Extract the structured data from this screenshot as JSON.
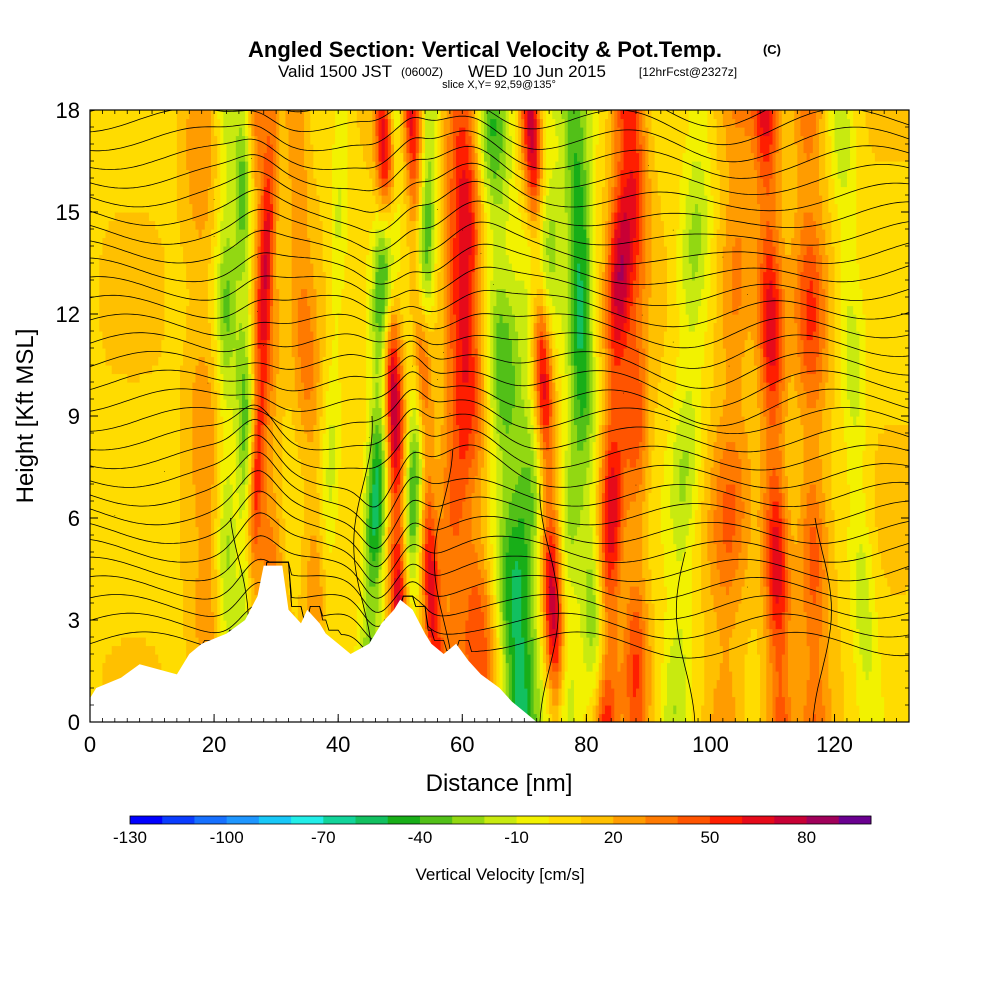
{
  "title": {
    "main": "Angled Section: Vertical Velocity & Pot.Temp.",
    "main_unit": "(C)",
    "valid_prefix": "Valid 1500 JST",
    "valid_z": "(0600Z)",
    "valid_date": "WED 10 Jun 2015",
    "valid_fcst": "[12hrFcst@2327z]",
    "slice": "slice X,Y= 92,59@135°"
  },
  "chart_data": {
    "type": "heatmap",
    "xlabel": "Distance [nm]",
    "ylabel": "Height [Kft MSL]",
    "xlim": [
      0,
      132
    ],
    "ylim": [
      0,
      18
    ],
    "x_ticks": [
      0,
      20,
      40,
      60,
      80,
      100,
      120
    ],
    "y_ticks": [
      0,
      3,
      6,
      9,
      12,
      15,
      18
    ],
    "colorbar": {
      "title": "Vertical Velocity [cm/s]",
      "levels": [
        -130,
        -120,
        -110,
        -100,
        -90,
        -80,
        -70,
        -60,
        -50,
        -40,
        -30,
        -20,
        -10,
        0,
        10,
        20,
        30,
        40,
        50,
        60,
        70,
        80,
        90,
        100
      ],
      "colors": [
        "#0000ff",
        "#0a3cff",
        "#1670ff",
        "#1e96ff",
        "#18c8f8",
        "#22eee8",
        "#12d49a",
        "#12c060",
        "#18ae18",
        "#52c018",
        "#92d812",
        "#c8ea10",
        "#f2f200",
        "#ffdc00",
        "#ffc000",
        "#ff9c00",
        "#ff7a00",
        "#ff5400",
        "#ff1e00",
        "#e60a1a",
        "#c80035",
        "#a0005a",
        "#6a0090"
      ],
      "tick_labels": [
        "-130",
        "-100",
        "-70",
        "-40",
        "-10",
        "20",
        "50",
        "80"
      ],
      "tick_values": [
        -130,
        -100,
        -70,
        -40,
        -10,
        20,
        50,
        80
      ]
    },
    "vertical_velocity_features": [
      {
        "x": 22,
        "width": 1.6,
        "value": -35
      },
      {
        "x": 25,
        "width": 1.4,
        "value": -45
      },
      {
        "x": 26.5,
        "width": 1.2,
        "value": 45
      },
      {
        "x": 29,
        "width": 2.0,
        "value": 30
      },
      {
        "x": 18.5,
        "width": 2.5,
        "value": 20
      },
      {
        "x": 36,
        "width": 2.0,
        "value": 25
      },
      {
        "x": 38.5,
        "width": 1.5,
        "value": -20
      },
      {
        "x": 46,
        "width": 1.8,
        "value": -70
      },
      {
        "x": 49.5,
        "width": 1.5,
        "value": 80
      },
      {
        "x": 52,
        "width": 1.6,
        "value": -55
      },
      {
        "x": 54.5,
        "width": 1.4,
        "value": 55
      },
      {
        "x": 58.5,
        "width": 2.5,
        "value": 35
      },
      {
        "x": 62,
        "width": 3.0,
        "value": 40
      },
      {
        "x": 67.5,
        "width": 3.0,
        "value": -50
      },
      {
        "x": 71,
        "width": 3.0,
        "value": -40
      },
      {
        "x": 74,
        "width": 1.6,
        "value": 75
      },
      {
        "x": 77.5,
        "width": 2.0,
        "value": -35
      },
      {
        "x": 80.5,
        "width": 2.0,
        "value": -40
      },
      {
        "x": 84,
        "width": 2.0,
        "value": 65
      },
      {
        "x": 88,
        "width": 2.0,
        "value": 40
      },
      {
        "x": 95.5,
        "width": 2.5,
        "value": -30
      },
      {
        "x": 103,
        "width": 3.0,
        "value": 30
      },
      {
        "x": 110.5,
        "width": 2.0,
        "value": 60
      },
      {
        "x": 116.5,
        "width": 2.5,
        "value": 40
      },
      {
        "x": 124,
        "width": 2.0,
        "value": -25
      }
    ],
    "terrain_kft": [
      [
        0,
        0.7
      ],
      [
        1,
        1.0
      ],
      [
        5,
        1.3
      ],
      [
        8,
        1.7
      ],
      [
        14,
        1.4
      ],
      [
        16,
        2.0
      ],
      [
        18,
        2.3
      ],
      [
        22,
        2.6
      ],
      [
        25,
        3.0
      ],
      [
        27,
        3.7
      ],
      [
        28,
        4.6
      ],
      [
        31,
        4.6
      ],
      [
        32,
        3.3
      ],
      [
        34,
        2.9
      ],
      [
        35,
        3.3
      ],
      [
        37,
        2.9
      ],
      [
        38,
        2.6
      ],
      [
        40,
        2.3
      ],
      [
        42,
        2.0
      ],
      [
        45,
        2.3
      ],
      [
        47,
        2.9
      ],
      [
        49,
        3.3
      ],
      [
        50,
        3.6
      ],
      [
        52,
        3.3
      ],
      [
        54,
        2.6
      ],
      [
        55,
        2.3
      ],
      [
        57,
        2.0
      ],
      [
        59,
        2.3
      ],
      [
        61,
        1.8
      ],
      [
        63,
        1.4
      ],
      [
        66,
        1.0
      ],
      [
        68,
        0.6
      ],
      [
        70,
        0.3
      ],
      [
        72,
        0.0
      ]
    ],
    "theta_isolines_label": "potential temperature contours (C)"
  },
  "colors": {
    "background": "#ffffff",
    "frame": "#000000",
    "contour": "#000000"
  }
}
